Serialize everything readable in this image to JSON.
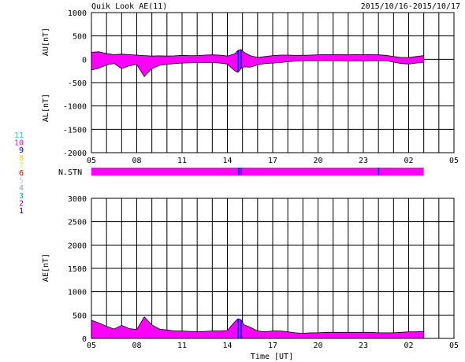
{
  "header": {
    "title": "Quik Look AE(11)",
    "date_range": "2015/10/16-2015/10/17"
  },
  "colors": {
    "fill": "#ff00ff",
    "highlight": "#0000ff",
    "grid": "#000000"
  },
  "station_legend": [
    {
      "label": "11",
      "color": "#00e0e0"
    },
    {
      "label": "10",
      "color": "#ff00ff"
    },
    {
      "label": "9",
      "color": "#0000ff"
    },
    {
      "label": "8",
      "color": "#ffd000"
    },
    {
      "label": "7",
      "color": "#b0ff60"
    },
    {
      "label": "6",
      "color": "#ff0000"
    },
    {
      "label": "5",
      "color": "#c8c8c8"
    },
    {
      "label": "4",
      "color": "#a0a0a0"
    },
    {
      "label": "3",
      "color": "#00a0a0"
    },
    {
      "label": "2",
      "color": "#a000a0"
    },
    {
      "label": "1",
      "color": "#0000c0"
    }
  ],
  "x_tick_labels": [
    "05",
    "08",
    "11",
    "14",
    "17",
    "20",
    "23",
    "02",
    "05"
  ],
  "xlabel": "Time [UT]",
  "chart_data": [
    {
      "type": "area",
      "ylabel_upper": "AU[nT]",
      "ylabel_lower": "AL[nT]",
      "ylim": [
        -2000,
        1000
      ],
      "y_ticks": [
        1000,
        500,
        0,
        -500,
        -1000,
        -1500,
        -2000
      ],
      "x_hours": [
        5,
        5.5,
        6,
        6.5,
        7,
        7.5,
        8,
        8.5,
        9,
        9.5,
        10,
        10.5,
        11,
        11.5,
        12,
        12.5,
        13,
        13.5,
        14,
        14.5,
        14.7,
        14.9,
        15.1,
        15.5,
        16,
        16.5,
        17,
        17.5,
        18,
        18.5,
        19,
        19.5,
        20,
        20.5,
        21,
        21.5,
        22,
        22.5,
        23,
        23.5,
        24,
        24.5,
        25,
        25.5,
        26,
        26.5,
        27
      ],
      "au_values": [
        150,
        160,
        120,
        100,
        110,
        100,
        90,
        80,
        70,
        75,
        70,
        75,
        85,
        80,
        80,
        90,
        95,
        90,
        70,
        120,
        190,
        210,
        150,
        80,
        40,
        60,
        80,
        90,
        90,
        85,
        85,
        90,
        95,
        100,
        100,
        100,
        95,
        100,
        100,
        100,
        95,
        85,
        60,
        40,
        40,
        60,
        80
      ],
      "al_values": [
        -230,
        -190,
        -120,
        -90,
        -200,
        -140,
        -110,
        -370,
        -200,
        -130,
        -110,
        -90,
        -80,
        -75,
        -70,
        -70,
        -70,
        -80,
        -100,
        -250,
        -280,
        -200,
        -160,
        -170,
        -120,
        -90,
        -80,
        -70,
        -50,
        -40,
        -30,
        -30,
        -30,
        -30,
        -30,
        -30,
        -35,
        -30,
        -35,
        -30,
        -30,
        -30,
        -60,
        -90,
        -100,
        -80,
        -70
      ]
    },
    {
      "type": "bar",
      "label": "N.STN",
      "x_range_hours": [
        5,
        27
      ],
      "marks_hours": [
        14.75,
        14.9,
        24.0
      ]
    },
    {
      "type": "area",
      "ylabel": "AE[nT]",
      "ylim": [
        0,
        3000
      ],
      "y_ticks": [
        3000,
        2500,
        2000,
        1500,
        1000,
        500,
        0
      ],
      "x_hours": [
        5,
        5.5,
        6,
        6.5,
        7,
        7.5,
        8,
        8.5,
        9,
        9.5,
        10,
        10.5,
        11,
        11.5,
        12,
        12.5,
        13,
        13.5,
        14,
        14.5,
        14.7,
        14.9,
        15.1,
        15.5,
        16,
        16.5,
        17,
        17.5,
        18,
        18.5,
        19,
        19.5,
        20,
        20.5,
        21,
        21.5,
        22,
        22.5,
        23,
        23.5,
        24,
        24.5,
        25,
        25.5,
        26,
        26.5,
        27
      ],
      "values": [
        390,
        330,
        260,
        200,
        280,
        210,
        190,
        460,
        290,
        200,
        180,
        160,
        160,
        150,
        140,
        150,
        160,
        160,
        170,
        360,
        420,
        400,
        290,
        240,
        160,
        140,
        160,
        160,
        140,
        120,
        110,
        120,
        120,
        130,
        130,
        130,
        130,
        130,
        130,
        130,
        120,
        120,
        120,
        130,
        140,
        140,
        150
      ]
    }
  ]
}
